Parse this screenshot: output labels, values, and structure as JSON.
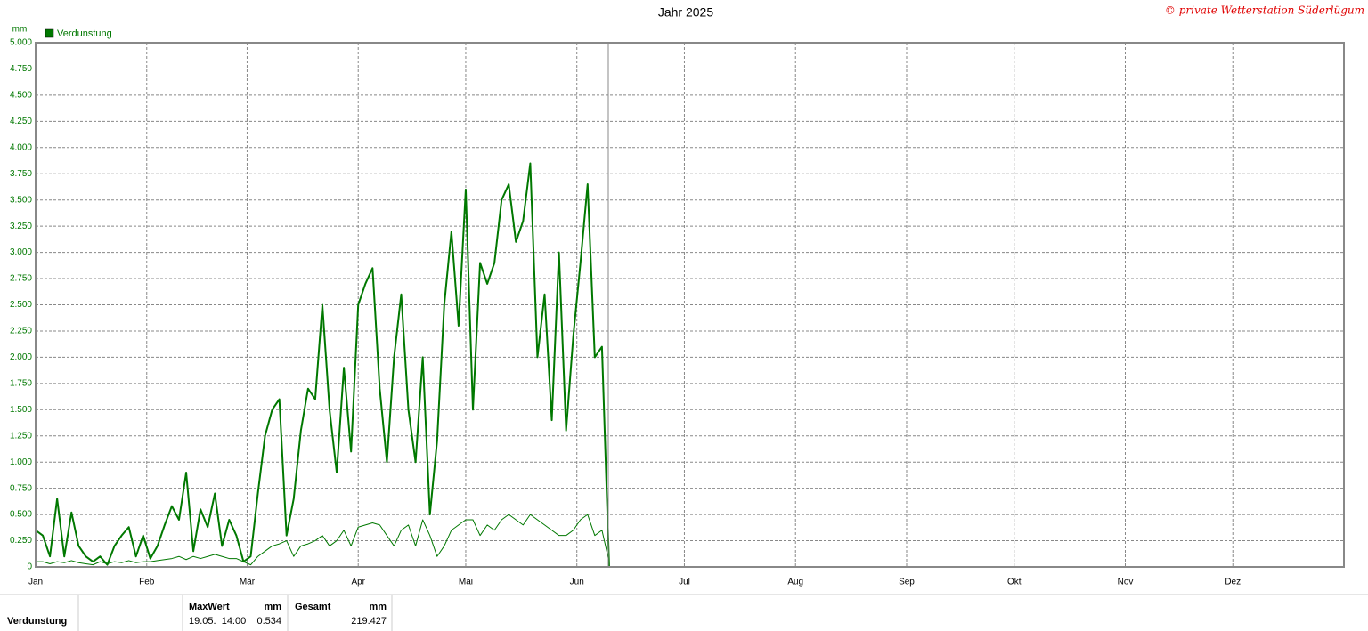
{
  "chart_data": {
    "type": "line",
    "title": "Jahr 2025",
    "copyright": "© private Wetterstation Süderlügum",
    "y_unit": "mm",
    "x": [
      0,
      2,
      4,
      6,
      8,
      10,
      12,
      14,
      16,
      18,
      20,
      22,
      24,
      26,
      28,
      30,
      32,
      34,
      36,
      38,
      40,
      42,
      44,
      46,
      48,
      50,
      52,
      54,
      56,
      58,
      60,
      62,
      64,
      66,
      68,
      70,
      72,
      74,
      76,
      78,
      80,
      82,
      84,
      86,
      88,
      90,
      92,
      94,
      96,
      98,
      100,
      102,
      104,
      106,
      108,
      110,
      112,
      114,
      116,
      118,
      120,
      122,
      124,
      126,
      128,
      130,
      132,
      134,
      136,
      138,
      140,
      142,
      144,
      146,
      148,
      150,
      152,
      154,
      156,
      158,
      160
    ],
    "series": [
      {
        "name": "Verdunstung",
        "color": "#007800",
        "values": [
          0.35,
          0.3,
          0.1,
          0.65,
          0.1,
          0.52,
          0.2,
          0.1,
          0.05,
          0.1,
          0.02,
          0.2,
          0.3,
          0.38,
          0.1,
          0.3,
          0.08,
          0.2,
          0.4,
          0.58,
          0.45,
          0.9,
          0.15,
          0.55,
          0.38,
          0.7,
          0.2,
          0.45,
          0.3,
          0.05,
          0.1,
          0.7,
          1.25,
          1.5,
          1.6,
          0.3,
          0.65,
          1.3,
          1.7,
          1.6,
          2.5,
          1.5,
          0.9,
          1.9,
          1.1,
          2.5,
          2.7,
          2.85,
          1.7,
          1.0,
          2.0,
          2.6,
          1.5,
          1.0,
          2.0,
          0.5,
          1.2,
          2.5,
          3.2,
          2.3,
          3.6,
          1.5,
          2.9,
          2.7,
          2.9,
          3.5,
          3.65,
          3.1,
          3.3,
          3.85,
          2.0,
          2.6,
          1.4,
          3.0,
          1.3,
          2.2,
          2.9,
          3.65,
          2.0,
          2.1,
          0.0
        ]
      },
      {
        "color": "#007800",
        "values": [
          0.05,
          0.05,
          0.03,
          0.05,
          0.04,
          0.06,
          0.04,
          0.03,
          0.02,
          0.05,
          0.03,
          0.05,
          0.04,
          0.06,
          0.04,
          0.05,
          0.05,
          0.06,
          0.07,
          0.08,
          0.1,
          0.07,
          0.1,
          0.08,
          0.1,
          0.12,
          0.1,
          0.08,
          0.08,
          0.05,
          0.02,
          0.1,
          0.15,
          0.2,
          0.22,
          0.25,
          0.1,
          0.2,
          0.22,
          0.25,
          0.3,
          0.2,
          0.25,
          0.35,
          0.2,
          0.38,
          0.4,
          0.42,
          0.4,
          0.3,
          0.2,
          0.35,
          0.4,
          0.2,
          0.45,
          0.3,
          0.1,
          0.2,
          0.35,
          0.4,
          0.45,
          0.45,
          0.3,
          0.4,
          0.35,
          0.45,
          0.5,
          0.45,
          0.4,
          0.5,
          0.45,
          0.4,
          0.35,
          0.3,
          0.3,
          0.35,
          0.45,
          0.5,
          0.3,
          0.35,
          0.05
        ]
      }
    ],
    "xlim": [
      0,
      365
    ],
    "xticks": [
      {
        "value": 0,
        "label": "Jan"
      },
      {
        "value": 31,
        "label": "Feb"
      },
      {
        "value": 59,
        "label": "Mär"
      },
      {
        "value": 90,
        "label": "Apr"
      },
      {
        "value": 120,
        "label": "Mai"
      },
      {
        "value": 151,
        "label": "Jun"
      },
      {
        "value": 181,
        "label": "Jul"
      },
      {
        "value": 212,
        "label": "Aug"
      },
      {
        "value": 243,
        "label": "Sep"
      },
      {
        "value": 273,
        "label": "Okt"
      },
      {
        "value": 304,
        "label": "Nov"
      },
      {
        "value": 334,
        "label": "Dez"
      }
    ],
    "ylim": [
      0,
      5
    ],
    "yticks": [
      0,
      {
        "value": 0.25,
        "label": "0.250"
      },
      {
        "value": 0.5,
        "label": "0.500"
      },
      {
        "value": 0.75,
        "label": "0.750"
      },
      {
        "value": 1,
        "label": "1.000"
      },
      {
        "value": 1.25,
        "label": "1.250"
      },
      {
        "value": 1.5,
        "label": "1.500"
      },
      {
        "value": 1.75,
        "label": "1.750"
      },
      {
        "value": 2,
        "label": "2.000"
      },
      {
        "value": 2.25,
        "label": "2.250"
      },
      {
        "value": 2.5,
        "label": "2.500"
      },
      {
        "value": 2.75,
        "label": "2.750"
      },
      {
        "value": 3,
        "label": "3.000"
      },
      {
        "value": 3.25,
        "label": "3.250"
      },
      {
        "value": 3.5,
        "label": "3.500"
      },
      {
        "value": 3.75,
        "label": "3.750"
      },
      {
        "value": 4,
        "label": "4.000"
      },
      {
        "value": 4.25,
        "label": "4.250"
      },
      {
        "value": 4.5,
        "label": "4.500"
      },
      {
        "value": 4.75,
        "label": "4.750"
      },
      {
        "value": 5,
        "label": "5.000"
      }
    ],
    "grid": true
  },
  "summary": {
    "row_label": "Verdunstung",
    "max_header": "MaxWert",
    "max_unit": "mm",
    "max_time": "19.05.  14:00",
    "max_value": "0.534",
    "total_header": "Gesamt",
    "total_unit": "mm",
    "total_value": "219.427"
  }
}
